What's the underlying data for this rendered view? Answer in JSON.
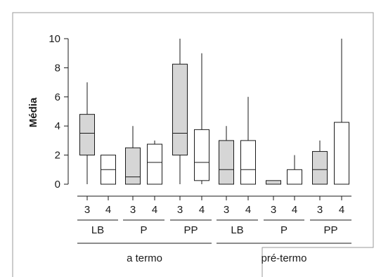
{
  "chart_data": {
    "type": "boxplot",
    "title": "",
    "ylabel": "Média",
    "xlabel": "",
    "ylim": [
      0,
      10
    ],
    "yticks": [
      0,
      2,
      4,
      6,
      8,
      10
    ],
    "groups": [
      {
        "label": "a termo",
        "subgroups": [
          "LB",
          "P",
          "PP"
        ]
      },
      {
        "label": "pré-termo",
        "subgroups": [
          "LB",
          "P",
          "PP"
        ]
      }
    ],
    "categories": [
      "3",
      "4",
      "3",
      "4",
      "3",
      "4",
      "3",
      "4",
      "3",
      "4",
      "3",
      "4"
    ],
    "fill_colors": {
      "3": "#d6d6d6",
      "4": "#ffffff"
    },
    "boxes": [
      {
        "group": "a termo",
        "subgroup": "LB",
        "category": "3",
        "min": 0,
        "q1": 2,
        "median": 3.5,
        "q3": 4.8,
        "max": 7
      },
      {
        "group": "a termo",
        "subgroup": "LB",
        "category": "4",
        "min": 0,
        "q1": 0,
        "median": 1,
        "q3": 2,
        "max": 2
      },
      {
        "group": "a termo",
        "subgroup": "P",
        "category": "3",
        "min": 0,
        "q1": 0,
        "median": 0.5,
        "q3": 2.5,
        "max": 4
      },
      {
        "group": "a termo",
        "subgroup": "P",
        "category": "4",
        "min": 0,
        "q1": 0,
        "median": 1.5,
        "q3": 2.75,
        "max": 3
      },
      {
        "group": "a termo",
        "subgroup": "PP",
        "category": "3",
        "min": 0,
        "q1": 2,
        "median": 3.5,
        "q3": 8.25,
        "max": 10
      },
      {
        "group": "a termo",
        "subgroup": "PP",
        "category": "4",
        "min": 0,
        "q1": 0.25,
        "median": 1.5,
        "q3": 3.75,
        "max": 9
      },
      {
        "group": "pré-termo",
        "subgroup": "LB",
        "category": "3",
        "min": 0,
        "q1": 0,
        "median": 1,
        "q3": 3,
        "max": 4
      },
      {
        "group": "pré-termo",
        "subgroup": "LB",
        "category": "4",
        "min": 0,
        "q1": 0,
        "median": 1,
        "q3": 3,
        "max": 6
      },
      {
        "group": "pré-termo",
        "subgroup": "P",
        "category": "3",
        "min": 0,
        "q1": 0,
        "median": 0,
        "q3": 0.25,
        "max": 0.25
      },
      {
        "group": "pré-termo",
        "subgroup": "P",
        "category": "4",
        "min": 0,
        "q1": 0,
        "median": 0,
        "q3": 1,
        "max": 2
      },
      {
        "group": "pré-termo",
        "subgroup": "PP",
        "category": "3",
        "min": 0,
        "q1": 0,
        "median": 1,
        "q3": 2.25,
        "max": 3
      },
      {
        "group": "pré-termo",
        "subgroup": "PP",
        "category": "4",
        "min": 0,
        "q1": 0,
        "median": 0,
        "q3": 4.25,
        "max": 10
      }
    ]
  }
}
